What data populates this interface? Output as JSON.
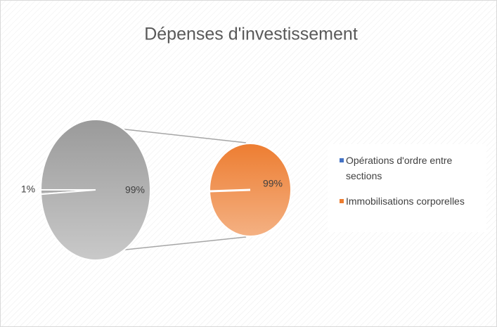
{
  "chart_data": {
    "type": "pie-of-pie",
    "title": "Dépenses d'investissement",
    "categories": [
      "Opérations d'ordre entre sections",
      "Immobilisations corporelles"
    ],
    "colors": [
      "#4472c4",
      "#ed7d31"
    ],
    "primary": {
      "values": [
        1,
        99
      ],
      "value_labels": [
        "1%",
        "99%"
      ],
      "color": "#a5a5a5"
    },
    "secondary": {
      "values": [
        99
      ],
      "value_labels": [
        "99%"
      ],
      "color": "#ed7d31"
    },
    "legend": "right"
  }
}
